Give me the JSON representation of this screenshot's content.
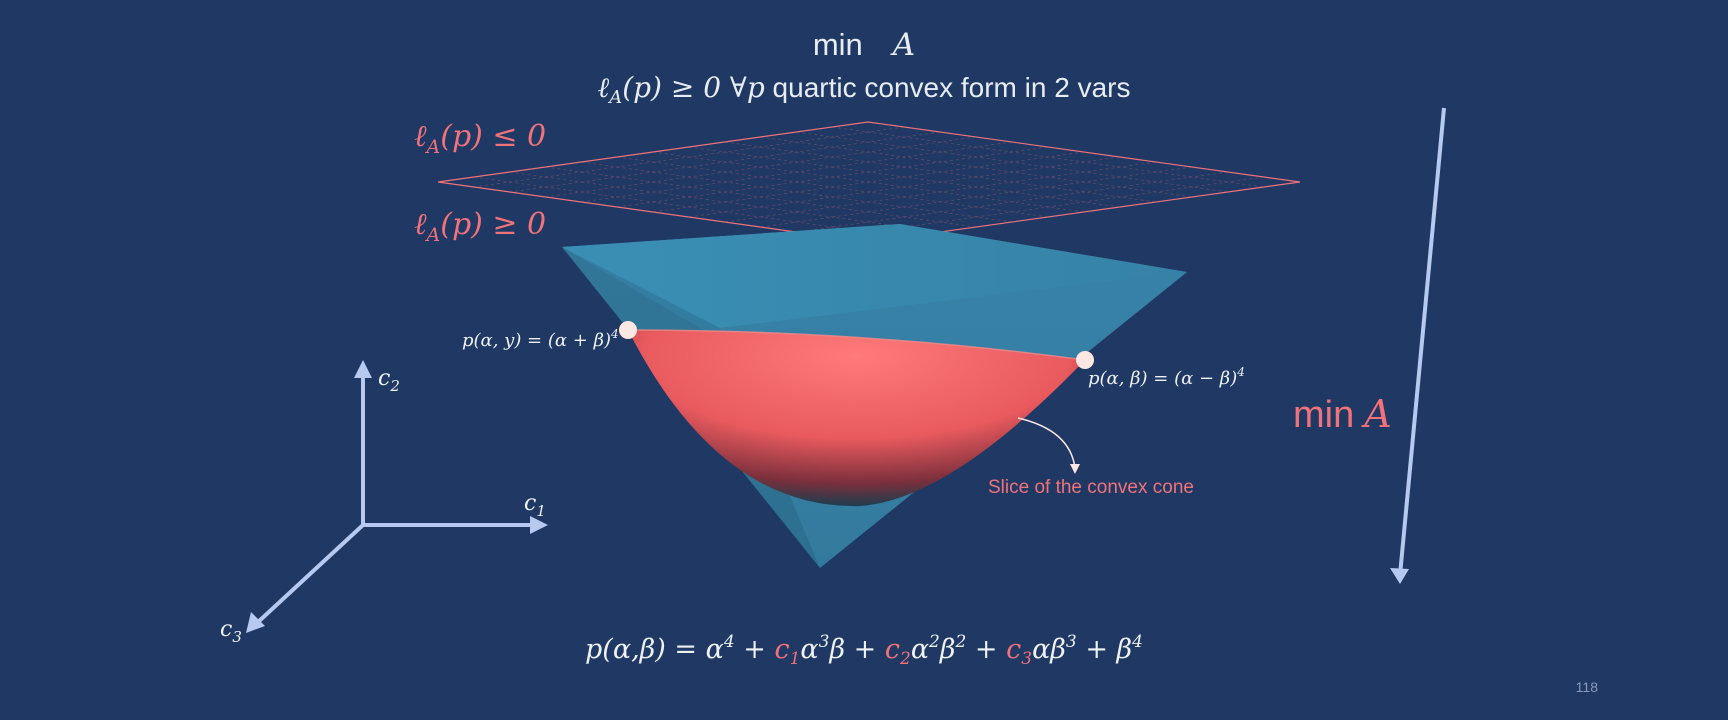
{
  "title": {
    "min_word": "min",
    "min_var": "A",
    "constraint_math": "ℓ",
    "constraint_sub": "A",
    "constraint_arg": "(p) ≥ 0 ∀p",
    "constraint_text": " quartic convex form in 2 vars"
  },
  "plane_labels": {
    "upper": {
      "ell": "ℓ",
      "sub": "A",
      "rest": "(p) ≤ 0"
    },
    "lower": {
      "ell": "ℓ",
      "sub": "A",
      "rest": "(p) ≥ 0"
    }
  },
  "points": {
    "left": "p(α, y) =  (α + β)",
    "left_exp": "4",
    "right": "p(α, β) =  (α − β)",
    "right_exp": "4"
  },
  "slice_label": "Slice of the convex cone",
  "min_arrow_label": {
    "word": "min",
    "var": "A"
  },
  "axes": {
    "c1": {
      "base": "c",
      "sub": "1"
    },
    "c2": {
      "base": "c",
      "sub": "2"
    },
    "c3": {
      "base": "c",
      "sub": "3"
    }
  },
  "formula": {
    "lhs": "p(α,β) = α",
    "e4a": "4",
    "plus1": " + ",
    "c1": "c",
    "c1s": "1",
    "t1": "α",
    "t1e": "3",
    "t1b": "β + ",
    "c2": "c",
    "c2s": "2",
    "t2": "α",
    "t2e": "2",
    "t2b": "β",
    "t2be": "2",
    "plus3": " + ",
    "c3": "c",
    "c3s": "3",
    "t3": "αβ",
    "t3e": "3",
    "t3b": " + β",
    "t3be": "4"
  },
  "page_number": "118",
  "colors": {
    "background": "#1f3864",
    "accent_pink": "#f0727a",
    "text_light": "#e8ecf4",
    "axis_blue": "#b7c9ee",
    "cone_blue": "#3f8fb4"
  }
}
